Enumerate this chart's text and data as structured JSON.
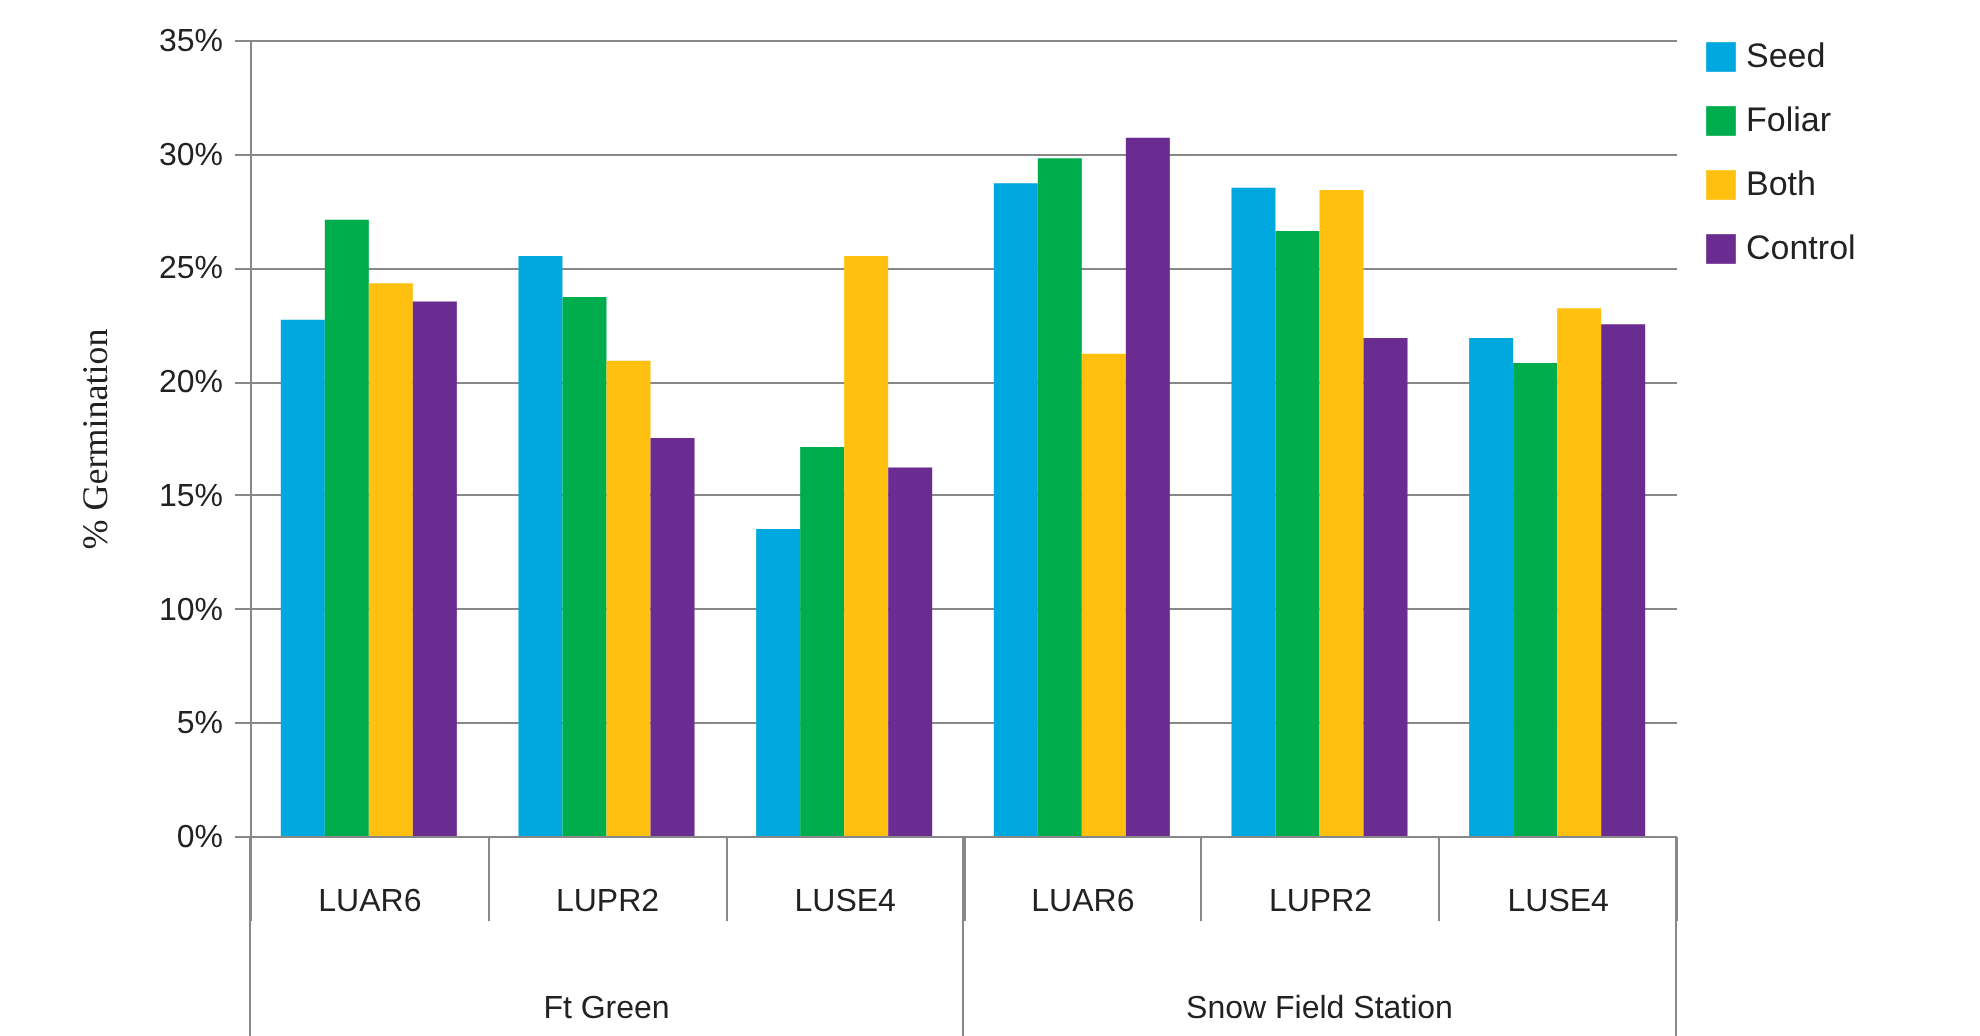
{
  "chart_data": {
    "type": "bar",
    "ylabel": "% Germination",
    "categories": [
      "LUAR6",
      "LUPR2",
      "LUSE4",
      "LUAR6",
      "LUPR2",
      "LUSE4"
    ],
    "annotations": [
      "Ft Green",
      "Snow Field Station"
    ],
    "series": [
      {
        "name": "Seed",
        "color": "#00a8e0",
        "values": [
          22.7,
          25.5,
          13.5,
          28.7,
          28.5,
          21.9
        ]
      },
      {
        "name": "Foliar",
        "color": "#00ad4c",
        "values": [
          27.1,
          23.7,
          17.1,
          29.8,
          26.6,
          20.8
        ]
      },
      {
        "name": "Both",
        "color": "#ffc010",
        "values": [
          24.3,
          20.9,
          25.5,
          21.2,
          28.4,
          23.2
        ]
      },
      {
        "name": "Control",
        "color": "#6b2c91",
        "values": [
          23.5,
          17.5,
          16.2,
          30.7,
          21.9,
          22.5
        ]
      }
    ],
    "ylim": [
      0,
      35
    ],
    "yticks": [
      {
        "value": 0,
        "label": "0%"
      },
      {
        "value": 5,
        "label": "5%"
      },
      {
        "value": 10,
        "label": "10%"
      },
      {
        "value": 15,
        "label": "15%"
      },
      {
        "value": 20,
        "label": "20%"
      },
      {
        "value": 25,
        "label": "25%"
      },
      {
        "value": 30,
        "label": "30%"
      },
      {
        "value": 35,
        "label": "35%"
      }
    ],
    "grid": "y",
    "legend": "right"
  }
}
